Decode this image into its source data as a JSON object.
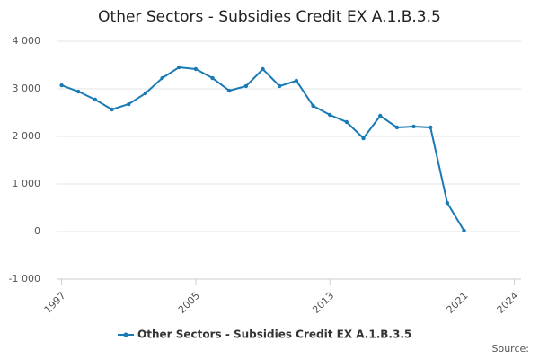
{
  "chart_data": {
    "type": "line",
    "title": "Other Sectors - Subsidies Credit EX A.1.B.3.5",
    "x": [
      1997,
      1998,
      1999,
      2000,
      2001,
      2002,
      2003,
      2004,
      2005,
      2006,
      2007,
      2008,
      2009,
      2010,
      2011,
      2012,
      2013,
      2014,
      2015,
      2016,
      2017,
      2018,
      2019,
      2020,
      2021
    ],
    "series": [
      {
        "name": "Other Sectors - Subsidies Credit EX A.1.B.3.5",
        "color": "#1a7ab5",
        "values": [
          3075,
          2943,
          2774,
          2566,
          2679,
          2906,
          3226,
          3453,
          3415,
          3226,
          2962,
          3057,
          3415,
          3057,
          3170,
          2642,
          2453,
          2302,
          1962,
          2434,
          2189,
          2208,
          2189,
          604,
          19
        ]
      }
    ],
    "xlim": [
      1996.7,
      2024.4
    ],
    "xticks": [
      1997,
      2005,
      2013,
      2021,
      2024
    ],
    "ylim": [
      -1000,
      4000
    ],
    "yticks": [
      {
        "value": -1000,
        "label": "-1 000"
      },
      0,
      {
        "value": 1000,
        "label": "1 000"
      },
      {
        "value": 2000,
        "label": "2 000"
      },
      {
        "value": 3000,
        "label": "3 000"
      },
      {
        "value": 4000,
        "label": "4 000"
      }
    ],
    "grid": true,
    "source": "Source:"
  }
}
